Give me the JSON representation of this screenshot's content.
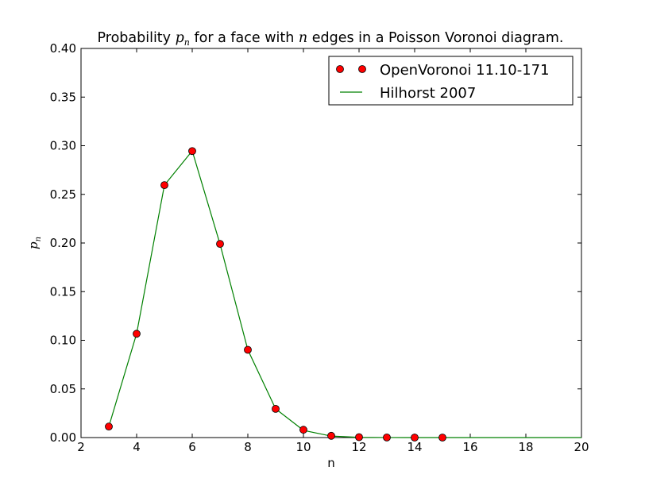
{
  "chart_data": {
    "type": "scatter",
    "title": {
      "before": "Probability ",
      "math_var": "p",
      "math_sub": "n",
      "middle": " for a face with ",
      "math_n": "n",
      "after": " edges in a Poisson Voronoi diagram."
    },
    "xlabel": "n",
    "ylabel": {
      "var": "p",
      "sub": "n"
    },
    "xlim": [
      2,
      20
    ],
    "ylim": [
      0,
      0.4
    ],
    "xticks": [
      2,
      4,
      6,
      8,
      10,
      12,
      14,
      16,
      18,
      20
    ],
    "yticks": [
      "0.00",
      "0.05",
      "0.10",
      "0.15",
      "0.20",
      "0.25",
      "0.30",
      "0.35",
      "0.40"
    ],
    "grid": false,
    "legend_position": "top-right",
    "series": [
      {
        "name": "OpenVoronoi 11.10-171",
        "style": "markers",
        "color": "#ff0000",
        "x": [
          3,
          4,
          5,
          6,
          7,
          8,
          9,
          10,
          11,
          12,
          13,
          14,
          15
        ],
        "y": [
          0.0113,
          0.1067,
          0.2595,
          0.2945,
          0.1991,
          0.0902,
          0.0295,
          0.008,
          0.0018,
          0.0004,
          0.0001,
          2e-05,
          3e-06
        ]
      },
      {
        "name": "Hilhorst 2007",
        "style": "line",
        "color": "#008000",
        "x": [
          3,
          4,
          5,
          6,
          7,
          8,
          9,
          10,
          11,
          12,
          13,
          14,
          15,
          16,
          17,
          18,
          19,
          20
        ],
        "y": [
          0.0113,
          0.1068,
          0.2595,
          0.2947,
          0.1988,
          0.0902,
          0.0295,
          0.0074,
          0.0015,
          0.0002,
          3e-05,
          4e-06,
          5e-07,
          0.0,
          0.0,
          0.0,
          0.0,
          0.0
        ]
      }
    ]
  }
}
